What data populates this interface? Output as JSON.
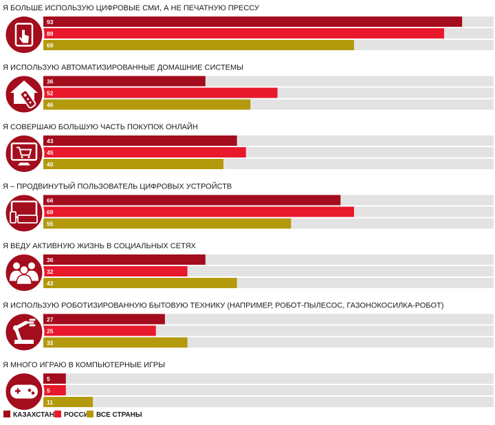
{
  "chart_data": {
    "type": "bar",
    "orientation": "horizontal",
    "xlim": [
      0,
      100
    ],
    "grid": false,
    "legend_position": "bottom-left",
    "series": [
      {
        "name": "КАЗАХСТАН",
        "color": "#a30d1d"
      },
      {
        "name": "РОССИЯ",
        "color": "#e8192c"
      },
      {
        "name": "ВСЕ СТРАНЫ",
        "color": "#b39a0c"
      }
    ],
    "groups": [
      {
        "title": "Я БОЛЬШЕ ИСПОЛЬЗУЮ ЦИФРОВЫЕ СМИ, А НЕ ПЕЧАТНУЮ ПРЕССУ",
        "icon": "tablet-icon",
        "values": [
          93,
          89,
          69
        ]
      },
      {
        "title": "Я ИСПОЛЬЗУЮ АВТОМАТИЗИРОВАННЫЕ ДОМАШНИЕ СИСТЕМЫ",
        "icon": "smart-home-icon",
        "values": [
          36,
          52,
          46
        ]
      },
      {
        "title": "Я СОВЕРШАЮ БОЛЬШУЮ ЧАСТЬ ПОКУПОК ОНЛАЙН",
        "icon": "shopping-cart-icon",
        "values": [
          43,
          45,
          40
        ]
      },
      {
        "title": "Я – ПРОДВИНУТЫЙ ПОЛЬЗОВАТЕЛЬ ЦИФРОВЫХ УСТРОЙСТВ",
        "icon": "devices-icon",
        "values": [
          66,
          69,
          55
        ]
      },
      {
        "title": "Я ВЕДУ АКТИВНУЮ ЖИЗНЬ В СОЦИАЛЬНЫХ СЕТЯХ",
        "icon": "people-icon",
        "values": [
          36,
          32,
          43
        ]
      },
      {
        "title": "Я ИСПОЛЬЗУЮ РОБОТИЗИРОВАННУЮ БЫТОВУЮ ТЕХНИКУ (НАПРИМЕР, РОБОТ-ПЫЛЕСОС, ГАЗОНОКОСИЛКА-РОБОТ)",
        "icon": "robot-arm-icon",
        "values": [
          27,
          25,
          32
        ]
      },
      {
        "title": "Я МНОГО ИГРАЮ В КОМПЬЮТЕРНЫЕ ИГРЫ",
        "icon": "gamepad-icon",
        "values": [
          5,
          5,
          11
        ]
      }
    ]
  }
}
